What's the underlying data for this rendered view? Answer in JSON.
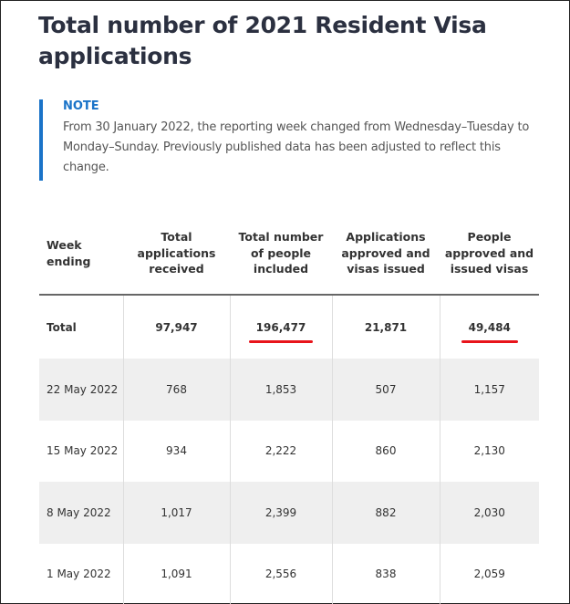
{
  "title": "Total number of 2021 Resident Visa applications",
  "note": {
    "label": "NOTE",
    "text": "From 30 January 2022, the reporting week changed from Wednesday–Tuesday to Monday–Sunday. Previously published data has been adjusted to reflect this change."
  },
  "table": {
    "headers": [
      "Week ending",
      "Total applications received",
      "Total number of people included",
      "Applications approved and visas issued",
      "People approved and issued visas"
    ],
    "total": [
      "Total",
      "97,947",
      "196,477",
      "21,871",
      "49,484"
    ],
    "rows": [
      [
        "22 May 2022",
        "768",
        "1,853",
        "507",
        "1,157"
      ],
      [
        "15 May 2022",
        "934",
        "2,222",
        "860",
        "2,130"
      ],
      [
        "8 May 2022",
        "1,017",
        "2,399",
        "882",
        "2,030"
      ],
      [
        "1 May 2022",
        "1,091",
        "2,556",
        "838",
        "2,059"
      ]
    ]
  },
  "colors": {
    "accent": "#1a73c8",
    "highlight": "#e8141b"
  }
}
